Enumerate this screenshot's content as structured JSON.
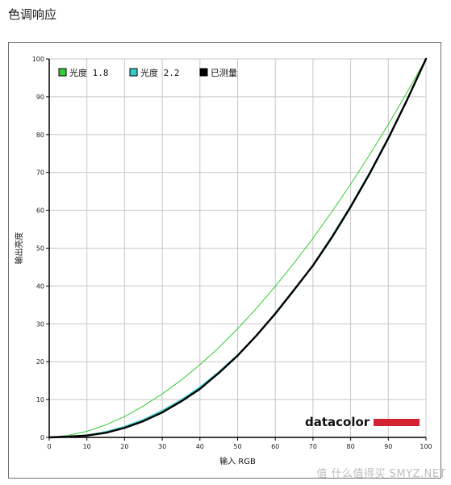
{
  "page": {
    "title": "色调响应",
    "watermark": "值 什么值得买 SMYZ.NET"
  },
  "logo": {
    "brand_text": "datacolor",
    "bar_color": "#d32232"
  },
  "chart_data": {
    "type": "line",
    "title": "",
    "xlabel": "输入 RGB",
    "ylabel": "输出亮度",
    "xlim": [
      0,
      100
    ],
    "ylim": [
      0,
      100
    ],
    "xticks": [
      0,
      10,
      20,
      30,
      40,
      50,
      60,
      70,
      80,
      90,
      100
    ],
    "yticks": [
      0,
      10,
      20,
      30,
      40,
      50,
      60,
      70,
      80,
      90,
      100
    ],
    "grid": true,
    "legend_position": "top-left",
    "series": [
      {
        "name": "光度 1.8",
        "color": "#33cc33",
        "x": [
          0,
          5,
          10,
          15,
          20,
          25,
          30,
          35,
          40,
          45,
          50,
          55,
          60,
          65,
          70,
          75,
          80,
          85,
          90,
          95,
          100
        ],
        "y": [
          0,
          0.5,
          1.6,
          3.3,
          5.5,
          8.3,
          11.5,
          15.1,
          19.2,
          23.7,
          28.7,
          34.1,
          39.9,
          46.1,
          52.6,
          59.6,
          66.9,
          74.6,
          82.7,
          91.2,
          100
        ]
      },
      {
        "name": "光度 2.2",
        "color": "#33cccc",
        "x": [
          0,
          5,
          10,
          15,
          20,
          25,
          30,
          35,
          40,
          45,
          50,
          55,
          60,
          65,
          70,
          75,
          80,
          85,
          90,
          95,
          100
        ],
        "y": [
          0,
          0.1,
          0.6,
          1.5,
          2.9,
          4.7,
          7.1,
          9.9,
          13.3,
          17.3,
          21.8,
          26.9,
          32.5,
          38.8,
          45.6,
          53.1,
          61.2,
          69.9,
          79.3,
          89.3,
          100
        ]
      },
      {
        "name": "已测量",
        "color": "#000000",
        "x": [
          0,
          5,
          10,
          15,
          20,
          25,
          30,
          35,
          40,
          45,
          50,
          55,
          60,
          65,
          70,
          75,
          80,
          85,
          90,
          95,
          100
        ],
        "y": [
          0,
          0.2,
          0.5,
          1.2,
          2.5,
          4.3,
          6.6,
          9.5,
          12.8,
          17.0,
          21.6,
          26.9,
          32.7,
          39.0,
          45.4,
          52.8,
          60.9,
          69.6,
          79.0,
          89.2,
          100
        ]
      }
    ]
  }
}
